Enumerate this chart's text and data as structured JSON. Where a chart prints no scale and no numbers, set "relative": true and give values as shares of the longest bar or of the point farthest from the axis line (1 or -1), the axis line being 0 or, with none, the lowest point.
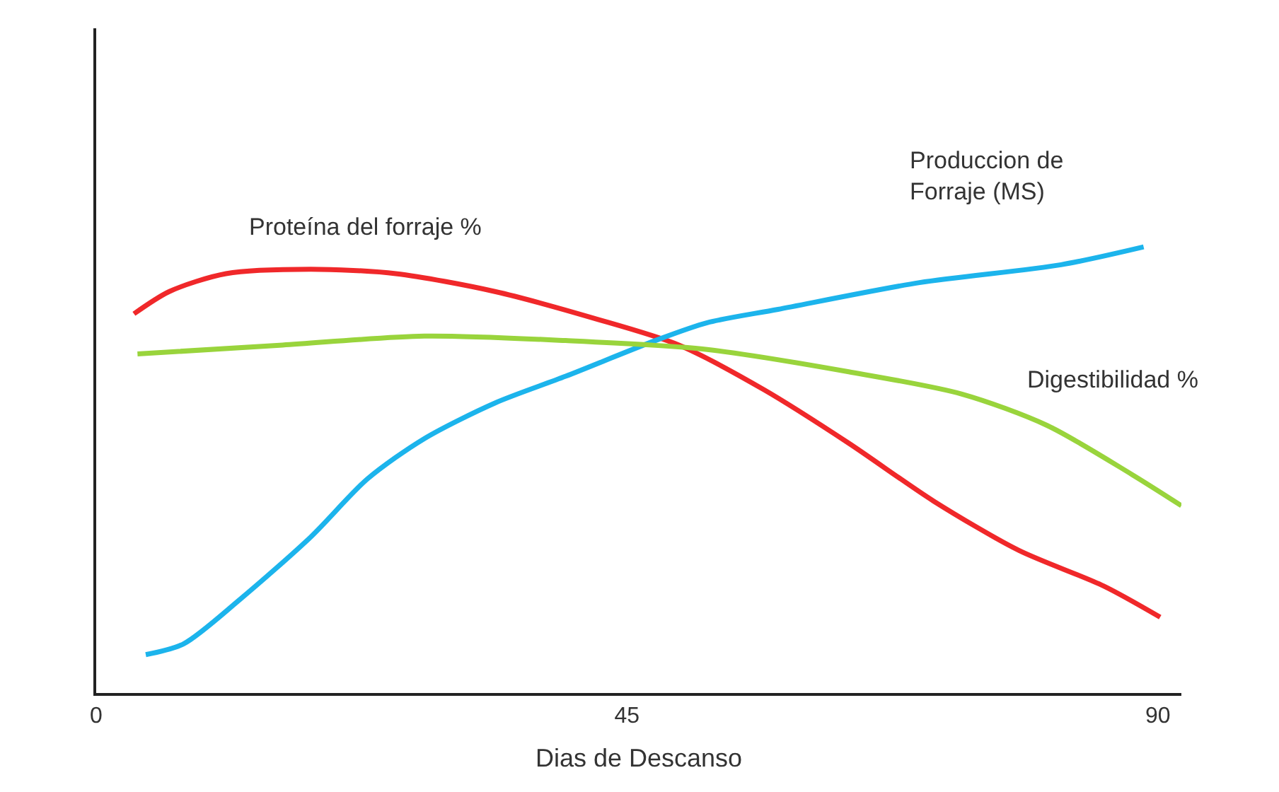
{
  "chart_data": {
    "type": "line",
    "relative": true,
    "xlabel": "Dias de Descanso",
    "xlim": [
      0,
      92
    ],
    "xticks": [
      0,
      45,
      90
    ],
    "legend": false,
    "marker": "none",
    "line_style": "solid",
    "series": [
      {
        "name": "Proteína del forraje %",
        "color": "#f0282a",
        "x": [
          3.2,
          6.2,
          11,
          18.2,
          25.4,
          33.8,
          42.2,
          49.4,
          56.6,
          63.8,
          71,
          78.2,
          85.4,
          90.2
        ],
        "values": [
          0.85,
          0.9,
          0.94,
          0.95,
          0.94,
          0.9,
          0.84,
          0.78,
          0.68,
          0.56,
          0.43,
          0.32,
          0.24,
          0.17
        ]
      },
      {
        "name": "Produccion de Forraje (MS)",
        "color": "#1cb4ec",
        "x": [
          4.2,
          7.4,
          12.2,
          18.2,
          23,
          27.8,
          33.8,
          39.8,
          47.4,
          51.8,
          57.8,
          69.8,
          81.8,
          88.8
        ],
        "values": [
          0.086,
          0.11,
          0.21,
          0.35,
          0.48,
          0.57,
          0.65,
          0.71,
          0.79,
          0.83,
          0.86,
          0.92,
          0.96,
          1
        ]
      },
      {
        "name": "Digestibilidad %",
        "color": "#99d43c",
        "x": [
          3.5,
          15.8,
          27.8,
          39.8,
          51.8,
          63.8,
          73.4,
          80.6,
          87.8,
          92
        ],
        "values": [
          0.76,
          0.78,
          0.8,
          0.79,
          0.77,
          0.72,
          0.67,
          0.6,
          0.49,
          0.42
        ]
      }
    ]
  }
}
